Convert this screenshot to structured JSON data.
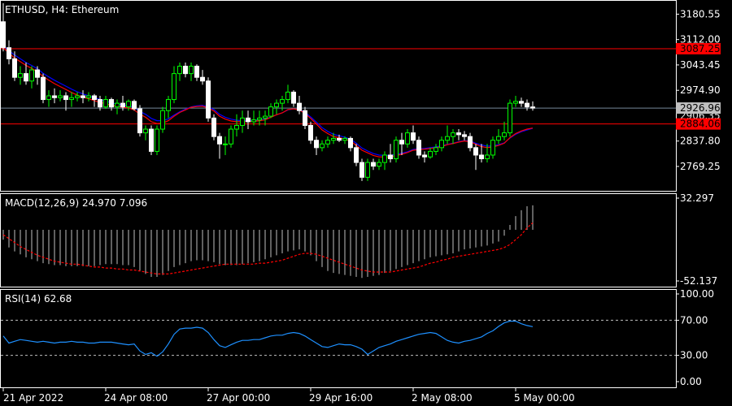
{
  "colors": {
    "background": "#000000",
    "frame": "#ffffff",
    "candle_bull": "#00ff00",
    "candle_bear": "#ffffff",
    "ma_fast": "#ff0000",
    "ma_slow": "#0000ff",
    "level_line": "#ff0000",
    "level_tag": "#ff0000",
    "price_line": "#778899",
    "price_tag": "#c0c0c0",
    "macd_hist": "#c0c0c0",
    "macd_signal": "#ff0000",
    "rsi_line": "#1e90ff",
    "rsi_levels": "#c0c0c0"
  },
  "chart_data": [
    {
      "type": "candlestick",
      "title": "ETHUSD, H4:  Ethereum",
      "symbol": "ETHUSD",
      "timeframe": "H4",
      "description": "Ethereum",
      "ylim": [
        2710,
        3210
      ],
      "y_ticks": [
        "3180.55",
        "3112.00",
        "3043.45",
        "2974.90",
        "2837.80",
        "2769.25"
      ],
      "current_price": {
        "value": 2926.96,
        "label": "2926.96"
      },
      "levels": [
        {
          "value": 3087.25,
          "label": "3087.25"
        },
        {
          "value": 2884.06,
          "label": "2884.06"
        }
      ],
      "hidden_tick_label": "2906.35",
      "x_labels": [
        "21 Apr 2022",
        "24 Apr 08:00",
        "27 Apr 00:00",
        "29 Apr 16:00",
        "2 May 08:00",
        "5 May 00:00"
      ],
      "ohlc": [
        [
          3160,
          3210,
          3080,
          3090
        ],
        [
          3090,
          3110,
          3045,
          3060
        ],
        [
          3060,
          3080,
          3000,
          3010
        ],
        [
          3010,
          3040,
          2990,
          3020
        ],
        [
          3020,
          3050,
          2990,
          3000
        ],
        [
          3000,
          3040,
          2980,
          3030
        ],
        [
          3030,
          3040,
          2990,
          3010
        ],
        [
          3010,
          3020,
          2940,
          2950
        ],
        [
          2950,
          2975,
          2930,
          2960
        ],
        [
          2960,
          2980,
          2940,
          2955
        ],
        [
          2955,
          2975,
          2945,
          2960
        ],
        [
          2960,
          2970,
          2920,
          2950
        ],
        [
          2950,
          2970,
          2930,
          2955
        ],
        [
          2955,
          2970,
          2945,
          2960
        ],
        [
          2960,
          2975,
          2940,
          2955
        ],
        [
          2955,
          2970,
          2945,
          2960
        ],
        [
          2960,
          2965,
          2930,
          2950
        ],
        [
          2950,
          2960,
          2920,
          2930
        ],
        [
          2930,
          2960,
          2925,
          2950
        ],
        [
          2950,
          2955,
          2920,
          2930
        ],
        [
          2930,
          2950,
          2910,
          2940
        ],
        [
          2940,
          2960,
          2920,
          2930
        ],
        [
          2930,
          2950,
          2920,
          2945
        ],
        [
          2945,
          2950,
          2920,
          2925
        ],
        [
          2925,
          2935,
          2850,
          2860
        ],
        [
          2860,
          2880,
          2840,
          2870
        ],
        [
          2870,
          2880,
          2800,
          2810
        ],
        [
          2810,
          2880,
          2800,
          2870
        ],
        [
          2870,
          2930,
          2860,
          2920
        ],
        [
          2920,
          2960,
          2900,
          2950
        ],
        [
          2950,
          3040,
          2940,
          3020
        ],
        [
          3020,
          3050,
          3000,
          3040
        ],
        [
          3040,
          3050,
          3010,
          3020
        ],
        [
          3020,
          3050,
          3000,
          3040
        ],
        [
          3040,
          3045,
          3000,
          3010
        ],
        [
          3010,
          3030,
          2990,
          3000
        ],
        [
          3000,
          3010,
          2890,
          2900
        ],
        [
          2900,
          2910,
          2840,
          2850
        ],
        [
          2850,
          2860,
          2790,
          2830
        ],
        [
          2830,
          2850,
          2800,
          2830
        ],
        [
          2830,
          2880,
          2820,
          2870
        ],
        [
          2870,
          2910,
          2850,
          2880
        ],
        [
          2880,
          2920,
          2860,
          2900
        ],
        [
          2900,
          2920,
          2870,
          2890
        ],
        [
          2890,
          2920,
          2880,
          2895
        ],
        [
          2895,
          2920,
          2880,
          2900
        ],
        [
          2900,
          2920,
          2880,
          2905
        ],
        [
          2905,
          2940,
          2900,
          2930
        ],
        [
          2930,
          2950,
          2910,
          2940
        ],
        [
          2940,
          2960,
          2920,
          2950
        ],
        [
          2950,
          2990,
          2940,
          2970
        ],
        [
          2970,
          2975,
          2930,
          2940
        ],
        [
          2940,
          2960,
          2910,
          2920
        ],
        [
          2920,
          2930,
          2870,
          2880
        ],
        [
          2880,
          2890,
          2830,
          2840
        ],
        [
          2840,
          2850,
          2800,
          2820
        ],
        [
          2820,
          2840,
          2810,
          2830
        ],
        [
          2830,
          2850,
          2820,
          2840
        ],
        [
          2840,
          2860,
          2830,
          2845
        ],
        [
          2845,
          2855,
          2835,
          2840
        ],
        [
          2840,
          2850,
          2830,
          2845
        ],
        [
          2845,
          2850,
          2810,
          2820
        ],
        [
          2820,
          2830,
          2770,
          2780
        ],
        [
          2780,
          2790,
          2730,
          2740
        ],
        [
          2740,
          2790,
          2730,
          2780
        ],
        [
          2780,
          2790,
          2760,
          2770
        ],
        [
          2770,
          2790,
          2760,
          2780
        ],
        [
          2780,
          2810,
          2760,
          2800
        ],
        [
          2800,
          2830,
          2780,
          2790
        ],
        [
          2790,
          2850,
          2780,
          2840
        ],
        [
          2840,
          2860,
          2800,
          2830
        ],
        [
          2830,
          2870,
          2820,
          2860
        ],
        [
          2860,
          2880,
          2830,
          2840
        ],
        [
          2840,
          2850,
          2790,
          2800
        ],
        [
          2800,
          2810,
          2780,
          2795
        ],
        [
          2795,
          2820,
          2790,
          2810
        ],
        [
          2810,
          2830,
          2800,
          2820
        ],
        [
          2820,
          2850,
          2810,
          2840
        ],
        [
          2840,
          2880,
          2830,
          2850
        ],
        [
          2850,
          2870,
          2830,
          2860
        ],
        [
          2860,
          2870,
          2840,
          2855
        ],
        [
          2855,
          2865,
          2840,
          2850
        ],
        [
          2850,
          2860,
          2810,
          2820
        ],
        [
          2820,
          2830,
          2760,
          2800
        ],
        [
          2800,
          2830,
          2780,
          2790
        ],
        [
          2790,
          2830,
          2780,
          2800
        ],
        [
          2800,
          2850,
          2790,
          2840
        ],
        [
          2840,
          2870,
          2830,
          2850
        ],
        [
          2850,
          2890,
          2840,
          2860
        ],
        [
          2860,
          2950,
          2850,
          2940
        ],
        [
          2940,
          2960,
          2930,
          2945
        ],
        [
          2945,
          2955,
          2930,
          2940
        ],
        [
          2940,
          2950,
          2920,
          2930
        ],
        [
          2930,
          2945,
          2920,
          2926.96
        ]
      ],
      "ma_fast": [
        3090,
        3075,
        3062,
        3052,
        3042,
        3034,
        3025,
        3012,
        3002,
        2993,
        2985,
        2977,
        2969,
        2962,
        2956,
        2952,
        2947,
        2942,
        2939,
        2934,
        2932,
        2929,
        2927,
        2922,
        2910,
        2902,
        2890,
        2885,
        2886,
        2893,
        2905,
        2915,
        2922,
        2929,
        2931,
        2932,
        2927,
        2919,
        2905,
        2897,
        2892,
        2890,
        2890,
        2890,
        2891,
        2893,
        2895,
        2902,
        2909,
        2914,
        2923,
        2925,
        2922,
        2912,
        2899,
        2884,
        2868,
        2858,
        2850,
        2847,
        2843,
        2838,
        2826,
        2813,
        2806,
        2799,
        2795,
        2795,
        2795,
        2799,
        2802,
        2807,
        2813,
        2815,
        2816,
        2818,
        2820,
        2823,
        2828,
        2831,
        2835,
        2838,
        2836,
        2829,
        2823,
        2820,
        2822,
        2826,
        2832,
        2847,
        2858,
        2865,
        2870,
        2873
      ],
      "ma_slow": [
        3095,
        3082,
        3070,
        3060,
        3050,
        3042,
        3033,
        3021,
        3011,
        3002,
        2994,
        2986,
        2978,
        2971,
        2965,
        2960,
        2955,
        2950,
        2946,
        2941,
        2938,
        2935,
        2933,
        2929,
        2918,
        2910,
        2899,
        2893,
        2893,
        2898,
        2908,
        2917,
        2924,
        2930,
        2933,
        2934,
        2930,
        2923,
        2910,
        2902,
        2897,
        2894,
        2893,
        2893,
        2894,
        2895,
        2897,
        2903,
        2909,
        2914,
        2922,
        2925,
        2923,
        2915,
        2903,
        2889,
        2874,
        2864,
        2856,
        2852,
        2848,
        2843,
        2832,
        2819,
        2811,
        2804,
        2800,
        2799,
        2799,
        2802,
        2805,
        2809,
        2815,
        2817,
        2818,
        2820,
        2822,
        2825,
        2829,
        2832,
        2836,
        2839,
        2838,
        2832,
        2827,
        2824,
        2825,
        2828,
        2833,
        2846,
        2856,
        2863,
        2868,
        2872
      ]
    },
    {
      "type": "bar",
      "title": "MACD(12,26,9) 24.970 7.096",
      "indicator": "MACD",
      "params": [
        12,
        26,
        9
      ],
      "macd_value": 24.97,
      "signal_value": 7.096,
      "ylim": [
        -52.137,
        32.297
      ],
      "y_ticks": [
        "32.297",
        "-52.137"
      ],
      "histogram": [
        -10,
        -18,
        -22,
        -25,
        -28,
        -30,
        -32,
        -34,
        -35,
        -36,
        -36,
        -37,
        -37,
        -37,
        -37,
        -37,
        -37,
        -36,
        -35,
        -35,
        -35,
        -36,
        -36,
        -38,
        -42,
        -45,
        -48,
        -48,
        -46,
        -42,
        -38,
        -36,
        -34,
        -32,
        -31,
        -31,
        -32,
        -33,
        -35,
        -36,
        -36,
        -36,
        -35,
        -34,
        -33,
        -32,
        -30,
        -28,
        -26,
        -24,
        -22,
        -21,
        -20,
        -22,
        -26,
        -32,
        -38,
        -42,
        -44,
        -45,
        -46,
        -47,
        -48,
        -49,
        -48,
        -47,
        -46,
        -44,
        -42,
        -40,
        -38,
        -36,
        -34,
        -32,
        -30,
        -28,
        -27,
        -26,
        -25,
        -24,
        -22,
        -20,
        -19,
        -18,
        -17,
        -16,
        -14,
        -12,
        -6,
        5,
        14,
        20,
        24,
        24.97
      ],
      "signal": [
        -5,
        -9,
        -13,
        -17,
        -20,
        -23,
        -26,
        -28,
        -30,
        -32,
        -33,
        -34,
        -35,
        -35,
        -36,
        -37,
        -38,
        -38,
        -39,
        -39,
        -40,
        -40,
        -41,
        -41,
        -42,
        -43,
        -44,
        -45,
        -45,
        -45,
        -44,
        -43,
        -42,
        -41,
        -40,
        -39,
        -38,
        -37,
        -36,
        -35,
        -35,
        -35,
        -35,
        -35,
        -35,
        -34,
        -34,
        -33,
        -32,
        -31,
        -29,
        -27,
        -25,
        -24,
        -24,
        -25,
        -27,
        -29,
        -31,
        -33,
        -35,
        -37,
        -39,
        -41,
        -42,
        -43,
        -43,
        -43,
        -43,
        -42,
        -41,
        -40,
        -39,
        -38,
        -36,
        -34,
        -33,
        -31,
        -30,
        -28,
        -27,
        -26,
        -25,
        -24,
        -23,
        -22,
        -21,
        -20,
        -18,
        -15,
        -10,
        -5,
        2,
        7.096
      ]
    },
    {
      "type": "line",
      "title": "RSI(14) 62.68",
      "indicator": "RSI",
      "period": 14,
      "current": 62.68,
      "ylim": [
        0,
        100
      ],
      "y_ticks": [
        "100.00",
        "70.00",
        "30.00",
        "0.00"
      ],
      "levels": [
        70,
        30
      ],
      "values": [
        52,
        44,
        46,
        48,
        47,
        46,
        45,
        46,
        45,
        44,
        45,
        45,
        46,
        45,
        45,
        44,
        44,
        45,
        45,
        45,
        44,
        43,
        42,
        43,
        35,
        31,
        33,
        29,
        34,
        43,
        54,
        60,
        61,
        61,
        62,
        61,
        56,
        48,
        41,
        39,
        42,
        45,
        47,
        47,
        48,
        48,
        50,
        52,
        53,
        53,
        55,
        56,
        55,
        52,
        48,
        44,
        40,
        39,
        41,
        43,
        42,
        42,
        40,
        37,
        31,
        35,
        39,
        41,
        43,
        46,
        48,
        50,
        52,
        54,
        55,
        56,
        55,
        51,
        47,
        45,
        44,
        46,
        47,
        49,
        51,
        55,
        58,
        63,
        67,
        69,
        69,
        66,
        64,
        62.68
      ]
    }
  ]
}
